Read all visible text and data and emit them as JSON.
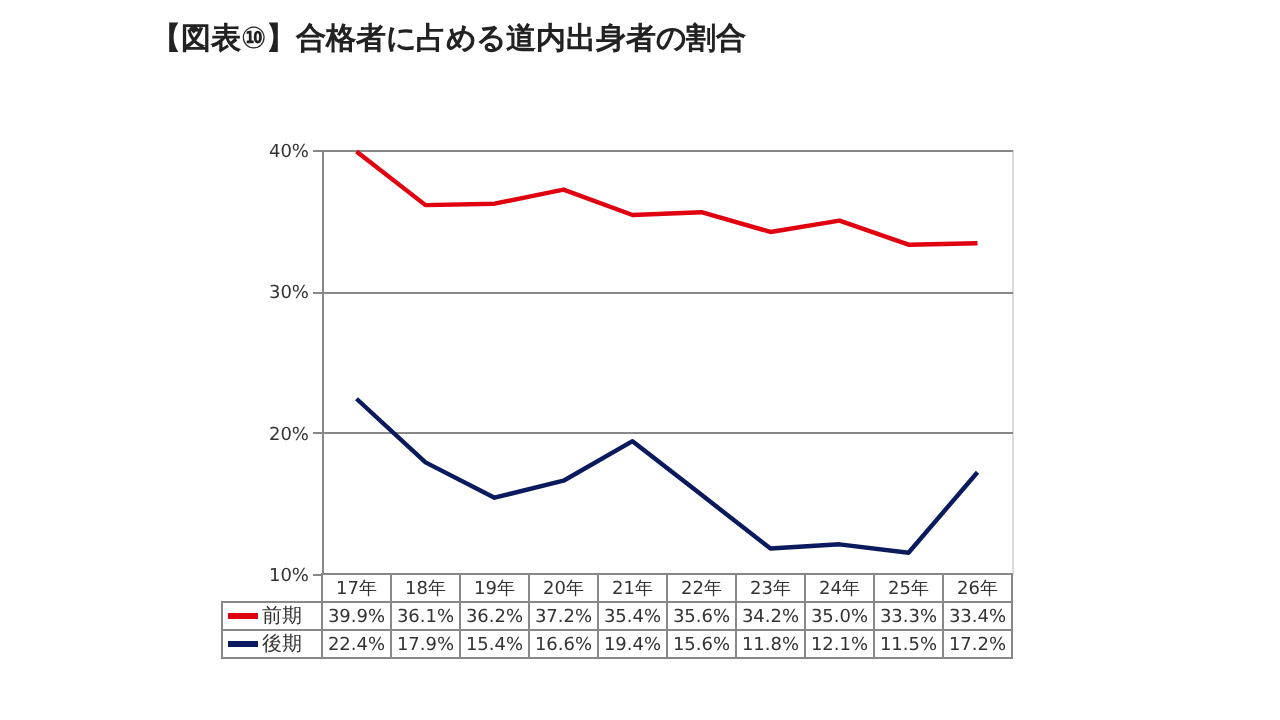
{
  "chart_data": {
    "type": "line",
    "title": "【図表⑩】合格者に占める道内出身者の割合",
    "categories": [
      "17年",
      "18年",
      "19年",
      "20年",
      "21年",
      "22年",
      "23年",
      "24年",
      "25年",
      "26年"
    ],
    "series": [
      {
        "name": "前期",
        "color": "#e00010",
        "values": [
          39.9,
          36.1,
          36.2,
          37.2,
          35.4,
          35.6,
          34.2,
          35.0,
          33.3,
          33.4
        ],
        "value_labels": [
          "39.9%",
          "36.1%",
          "36.2%",
          "37.2%",
          "35.4%",
          "35.6%",
          "34.2%",
          "35.0%",
          "33.3%",
          "33.4%"
        ]
      },
      {
        "name": "後期",
        "color": "#0a1a5c",
        "values": [
          22.4,
          17.9,
          15.4,
          16.6,
          19.4,
          15.6,
          11.8,
          12.1,
          11.5,
          17.2
        ],
        "value_labels": [
          "22.4%",
          "17.9%",
          "15.4%",
          "16.6%",
          "19.4%",
          "15.6%",
          "11.8%",
          "12.1%",
          "11.5%",
          "17.2%"
        ]
      }
    ],
    "ylim": [
      10,
      40
    ],
    "yticks": [
      {
        "value": 10,
        "label": "10%"
      },
      {
        "value": 20,
        "label": "20%"
      },
      {
        "value": 30,
        "label": "30%"
      },
      {
        "value": 40,
        "label": "40%"
      }
    ],
    "grid": "y",
    "legend": "bottom",
    "marker": "none",
    "line_style": "solid"
  }
}
